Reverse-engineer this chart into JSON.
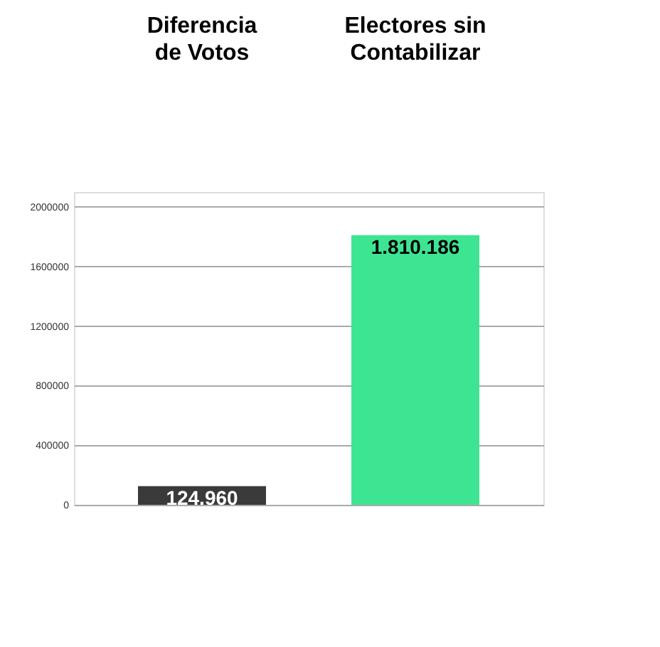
{
  "chart_data": {
    "type": "bar",
    "categories": [
      "Diferencia de Votos",
      "Electores sin Contabilizar"
    ],
    "values": [
      124960,
      1810186
    ],
    "colors": [
      "#3a3a3a",
      "#3de592"
    ],
    "value_labels": [
      "124.960",
      "1.810.186"
    ],
    "ylim": [
      0,
      2100000
    ],
    "yticks": [
      0,
      400000,
      800000,
      1200000,
      1600000,
      2000000
    ],
    "grid": "y"
  }
}
